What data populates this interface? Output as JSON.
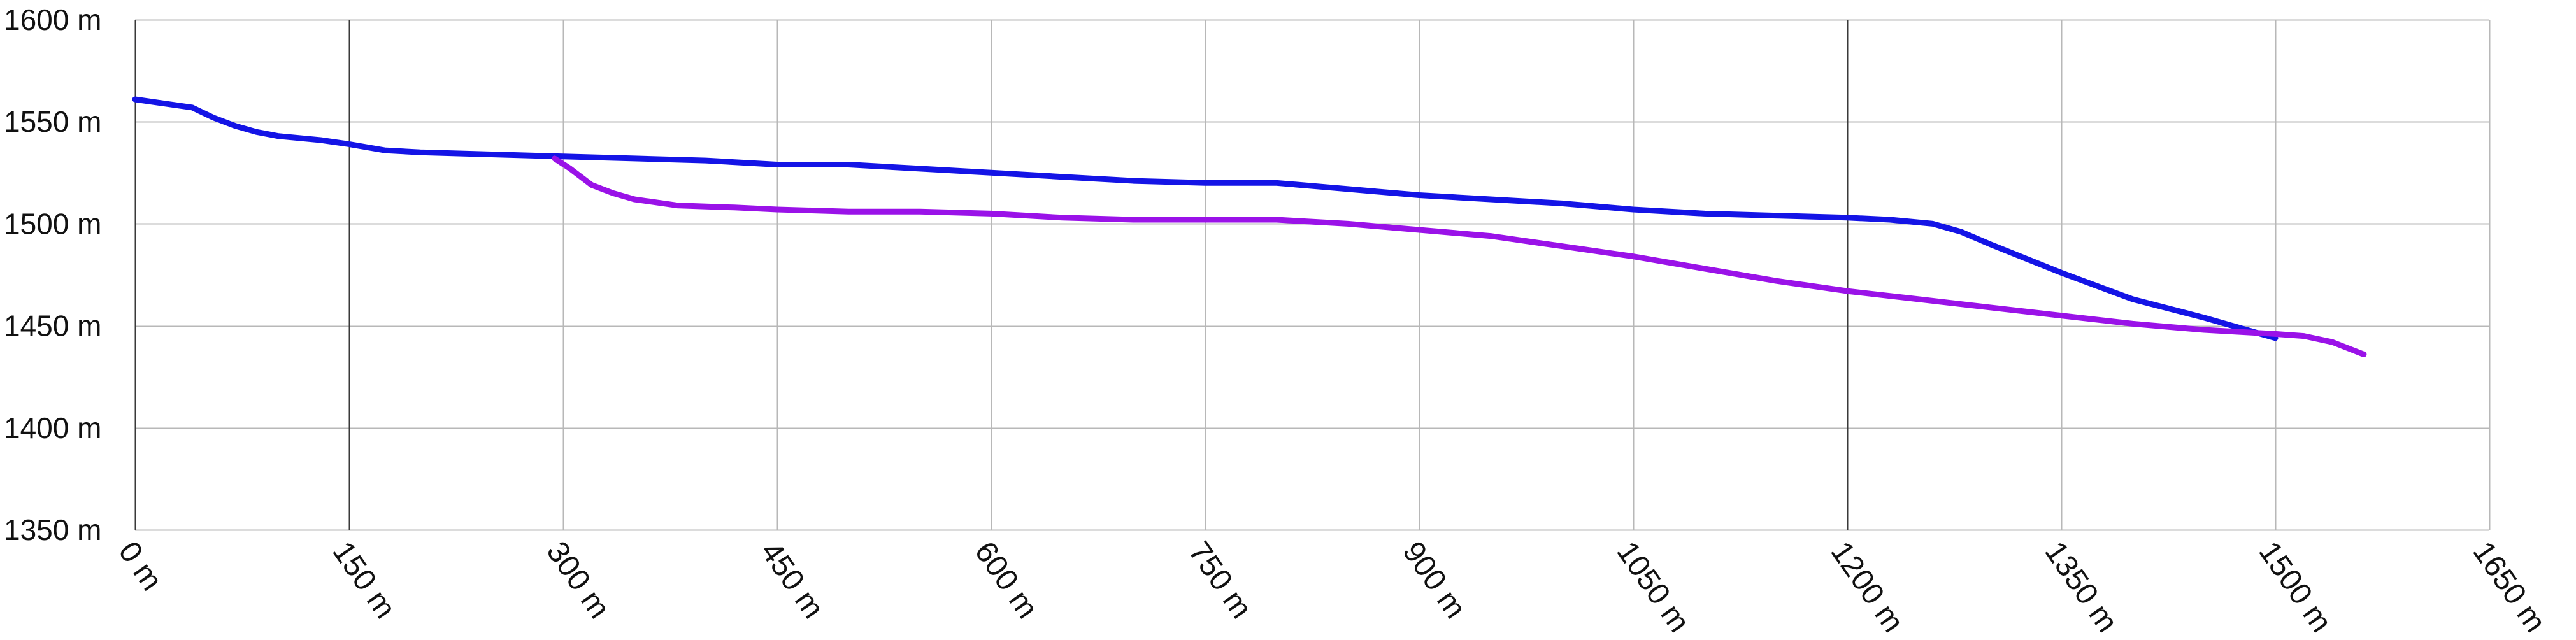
{
  "chart_data": {
    "type": "line",
    "title": "",
    "xlabel": "",
    "ylabel": "",
    "xlim": [
      0,
      1650
    ],
    "ylim": [
      1350,
      1600
    ],
    "grid": true,
    "x_ticks": [
      0,
      150,
      300,
      450,
      600,
      750,
      900,
      1050,
      1200,
      1350,
      1500,
      1650
    ],
    "x_tick_labels": [
      "0 m",
      "150 m",
      "300 m",
      "450 m",
      "600 m",
      "750 m",
      "900 m",
      "1050 m",
      "1200 m",
      "1350 m",
      "1500 m",
      "1650 m"
    ],
    "y_ticks": [
      1350,
      1400,
      1450,
      1500,
      1550,
      1600
    ],
    "y_tick_labels": [
      "1350 m",
      "1400 m",
      "1450 m",
      "1500 m",
      "1550 m",
      "1600 m"
    ],
    "series": [
      {
        "color": "#1414e6",
        "x": [
          0,
          20,
          40,
          55,
          70,
          85,
          100,
          130,
          150,
          175,
          200,
          250,
          300,
          350,
          400,
          450,
          500,
          550,
          600,
          650,
          700,
          750,
          800,
          850,
          900,
          950,
          1000,
          1050,
          1100,
          1150,
          1200,
          1230,
          1260,
          1280,
          1300,
          1350,
          1400,
          1450,
          1500
        ],
        "y": [
          1561,
          1559,
          1557,
          1552,
          1548,
          1545,
          1543,
          1541,
          1539,
          1536,
          1535,
          1534,
          1533,
          1532,
          1531,
          1529,
          1529,
          1527,
          1525,
          1523,
          1521,
          1520,
          1520,
          1517,
          1514,
          1512,
          1510,
          1507,
          1505,
          1504,
          1503,
          1502,
          1500,
          1496,
          1490,
          1476,
          1463,
          1454,
          1444
        ]
      },
      {
        "color": "#9a12e8",
        "x": [
          294,
          305,
          320,
          335,
          350,
          380,
          420,
          450,
          500,
          550,
          600,
          650,
          700,
          750,
          800,
          850,
          900,
          950,
          1000,
          1050,
          1100,
          1150,
          1200,
          1250,
          1300,
          1350,
          1400,
          1450,
          1500,
          1520,
          1540,
          1562
        ],
        "y": [
          1532,
          1527,
          1519,
          1515,
          1512,
          1509,
          1508,
          1507,
          1506,
          1506,
          1505,
          1503,
          1502,
          1502,
          1502,
          1500,
          1497,
          1494,
          1489,
          1484,
          1478,
          1472,
          1467,
          1463,
          1459,
          1455,
          1451,
          1448,
          1446,
          1445,
          1442,
          1436
        ]
      }
    ]
  }
}
